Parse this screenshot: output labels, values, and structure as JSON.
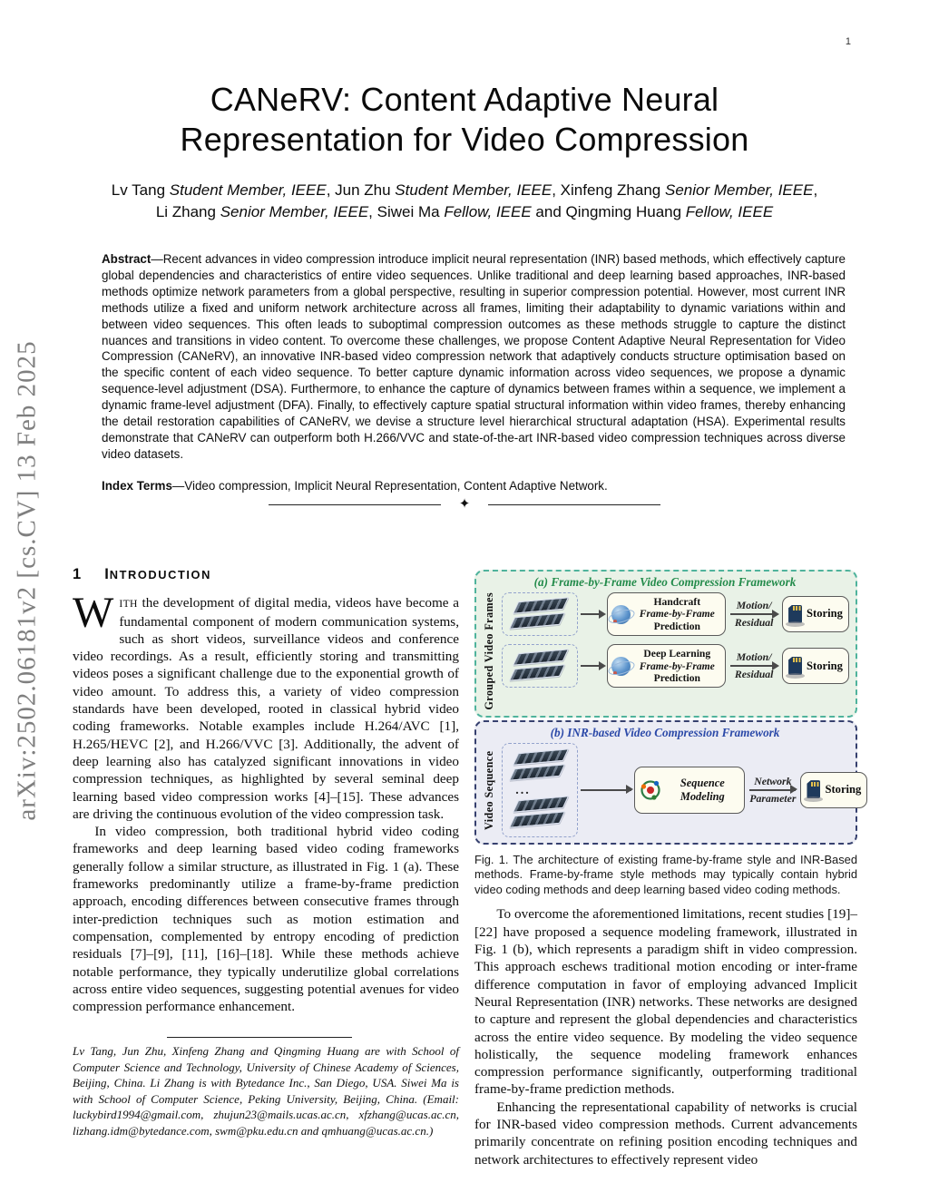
{
  "page": {
    "number": "1"
  },
  "arxiv_stamp": "arXiv:2502.06181v2  [cs.CV]  13 Feb 2025",
  "header": {
    "title_line1": "CANeRV: Content Adaptive Neural",
    "title_line2": "Representation for Video Compression",
    "authors_line1": [
      {
        "t": "Lv Tang ",
        "i": false
      },
      {
        "t": "Student Member, IEEE",
        "i": true
      },
      {
        "t": ", Jun Zhu ",
        "i": false
      },
      {
        "t": "Student Member, IEEE",
        "i": true
      },
      {
        "t": ", Xinfeng Zhang ",
        "i": false
      },
      {
        "t": "Senior Member, IEEE",
        "i": true
      },
      {
        "t": ",",
        "i": false
      }
    ],
    "authors_line2": [
      {
        "t": "Li Zhang ",
        "i": false
      },
      {
        "t": "Senior Member, IEEE",
        "i": true
      },
      {
        "t": ", Siwei Ma ",
        "i": false
      },
      {
        "t": "Fellow, IEEE",
        "i": true
      },
      {
        "t": " and Qingming Huang ",
        "i": false
      },
      {
        "t": "Fellow, IEEE",
        "i": true
      }
    ]
  },
  "abstract": {
    "label": "Abstract",
    "text": "—Recent advances in video compression introduce implicit neural representation (INR) based methods, which effectively capture global dependencies and characteristics of entire video sequences. Unlike traditional and deep learning based approaches, INR-based methods optimize network parameters from a global perspective, resulting in superior compression potential. However, most current INR methods utilize a fixed and uniform network architecture across all frames, limiting their adaptability to dynamic variations within and between video sequences. This often leads to suboptimal compression outcomes as these methods struggle to capture the distinct nuances and transitions in video content. To overcome these challenges, we propose Content Adaptive Neural Representation for Video Compression (CANeRV), an innovative INR-based video compression network that adaptively conducts structure optimisation based on the specific content of each video sequence. To better capture dynamic information across video sequences, we propose a dynamic sequence-level adjustment (DSA). Furthermore, to enhance the capture of dynamics between frames within a sequence, we implement a dynamic frame-level adjustment (DFA). Finally, to effectively capture spatial structural information within video frames, thereby enhancing the detail restoration capabilities of CANeRV, we devise a structure level hierarchical structural adaptation (HSA). Experimental results demonstrate that CANeRV can outperform both H.266/VVC and state-of-the-art INR-based video compression techniques across diverse video datasets."
  },
  "index_terms": {
    "label": "Index Terms",
    "text": "—Video compression, Implicit Neural Representation, Content Adaptive Network."
  },
  "divider": {
    "star": "✦"
  },
  "section1": {
    "number": "1",
    "title_first": "I",
    "title_rest": "NTRODUCTION"
  },
  "intro": {
    "p1_dropcap": "W",
    "p1_smallcaps": "ITH",
    "p1_text": " the development of digital media, videos have become a fundamental component of modern communication systems, such as short videos, surveillance videos and conference video recordings. As a result, efficiently storing and transmitting videos poses a significant challenge due to the exponential growth of video amount. To address this, a variety of video compression standards have been developed, rooted in classical hybrid video coding frameworks. Notable examples include H.264/AVC [1], H.265/HEVC [2], and H.266/VVC [3]. Additionally, the advent of deep learning also has catalyzed significant innovations in video compression techniques, as highlighted by several seminal deep learning based video compression works [4]–[15]. These advances are driving the continuous evolution of the video compression task.",
    "p2_text": "In video compression, both traditional hybrid video coding frameworks and deep learning based video coding frameworks generally follow a similar structure, as illustrated in Fig. 1 (a). These frameworks predominantly utilize a frame-by-frame prediction approach, encoding differences between consecutive frames through inter-prediction techniques such as motion estimation and compensation, complemented by entropy encoding of prediction residuals [7]–[9], [11], [16]–[18]. While these methods achieve notable performance, they typically underutilize global correlations across entire video sequences, suggesting potential avenues for video compression performance enhancement."
  },
  "figure1": {
    "panel_a": {
      "title": "(a) Frame-by-Frame Video Compression Framework",
      "side_label": "Grouped Video Frames",
      "rows": [
        {
          "box_line1": "Handcraft",
          "box_line2": "Frame-by-Frame",
          "box_line3": "Prediction",
          "arrow_top": "Motion/",
          "arrow_bottom": "Residual",
          "store": "Storing"
        },
        {
          "box_line1": "Deep Learning",
          "box_line2": "Frame-by-Frame",
          "box_line3": "Prediction",
          "arrow_top": "Motion/",
          "arrow_bottom": "Residual",
          "store": "Storing"
        }
      ]
    },
    "panel_b": {
      "title": "(b) INR-based Video Compression Framework",
      "side_label": "Video Sequence",
      "dots": "...",
      "box_line1": "Sequence",
      "box_line2": "Modeling",
      "arrow_top": "Network",
      "arrow_bottom": "Parameter",
      "store": "Storing"
    },
    "caption": "Fig. 1. The architecture of existing frame-by-frame style and INR-Based methods. Frame-by-frame style methods may typically contain hybrid video coding methods and deep learning based video coding methods.",
    "colors": {
      "panel_a_bg": "#e9f2e7",
      "panel_a_border": "#4fb39c",
      "panel_a_title": "#238b4b",
      "panel_b_bg": "#ebecf4",
      "panel_b_border": "#36406e",
      "panel_b_title": "#2b49a8",
      "box_bg": "#fdfcf0"
    }
  },
  "right_col": {
    "p1": "To overcome the aforementioned limitations, recent studies [19]–[22] have proposed a sequence modeling framework, illustrated in Fig. 1 (b), which represents a paradigm shift in video compression. This approach eschews traditional motion encoding or inter-frame difference computation in favor of employing advanced Implicit Neural Representation (INR) networks. These networks are designed to capture and represent the global dependencies and characteristics across the entire video sequence. By modeling the video sequence holistically, the sequence modeling framework enhances compression performance significantly, outperforming traditional frame-by-frame prediction methods.",
    "p2": "Enhancing the representational capability of networks is crucial for INR-based video compression methods. Current advancements primarily concentrate on refining position encoding techniques and network architectures to effectively represent video"
  },
  "footnote": "Lv Tang, Jun Zhu, Xinfeng Zhang and Qingming Huang are with School of Computer Science and Technology, University of Chinese Academy of Sciences, Beijing, China. Li Zhang is with Bytedance Inc., San Diego, USA. Siwei Ma is with School of Computer Science, Peking University, Beijing, China. (Email: luckybird1994@gmail.com, zhujun23@mails.ucas.ac.cn, xfzhang@ucas.ac.cn, lizhang.idm@bytedance.com, swm@pku.edu.cn and qmhuang@ucas.ac.cn.)"
}
